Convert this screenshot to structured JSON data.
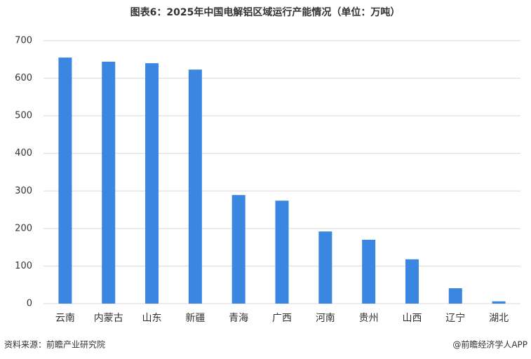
{
  "chart_data": {
    "type": "bar",
    "title": "图表6：2025年中国电解铝区域运行产能情况（单位：万吨）",
    "categories": [
      "云南",
      "内蒙古",
      "山东",
      "新疆",
      "青海",
      "广西",
      "河南",
      "贵州",
      "山西",
      "辽宁",
      "湖北"
    ],
    "values": [
      655,
      644,
      640,
      623,
      289,
      274,
      192,
      170,
      118,
      41,
      6
    ],
    "color": "#3a86e0",
    "ylim": [
      0,
      700
    ],
    "yticks": [
      0,
      100,
      200,
      300,
      400,
      500,
      600,
      700
    ],
    "grid": true,
    "source": "资料来源：前瞻产业研究院",
    "credit": "@前瞻经济学人APP"
  }
}
